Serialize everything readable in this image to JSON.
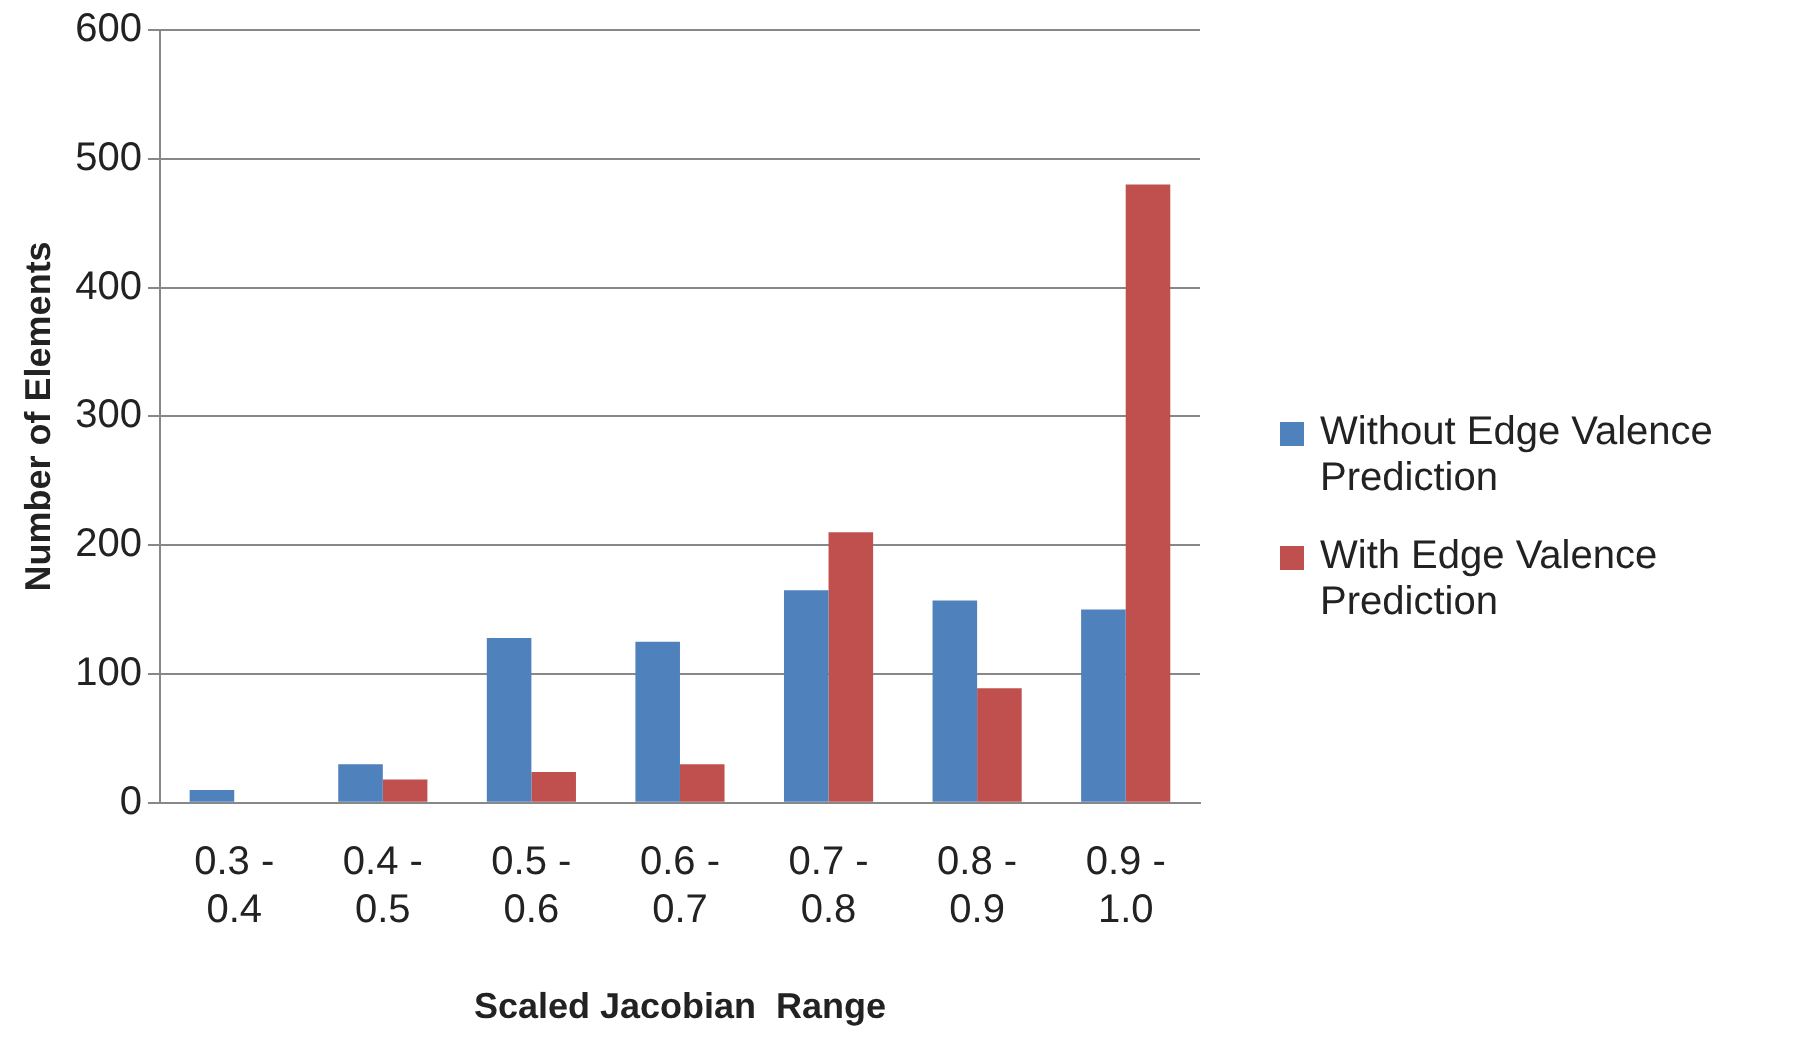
{
  "chart_data": {
    "type": "bar",
    "xlabel": "Scaled Jacobian  Range",
    "ylabel": "Number of Elements",
    "categories": [
      "0.3 - 0.4",
      "0.4 - 0.5",
      "0.5 - 0.6",
      "0.6 - 0.7",
      "0.7 - 0.8",
      "0.8 - 0.9",
      "0.9 - 1.0"
    ],
    "series": [
      {
        "name": "Without Edge Valence Prediction",
        "color": "#4f81bd",
        "values": [
          10,
          30,
          128,
          125,
          165,
          157,
          150
        ]
      },
      {
        "name": "With Edge  Valence Prediction",
        "color": "#c0504d",
        "values": [
          0,
          18,
          24,
          30,
          210,
          89,
          480
        ]
      }
    ],
    "ylim": [
      0,
      600
    ],
    "yticks": [
      0,
      100,
      200,
      300,
      400,
      500,
      600
    ],
    "grid": "y",
    "legend": "right"
  }
}
